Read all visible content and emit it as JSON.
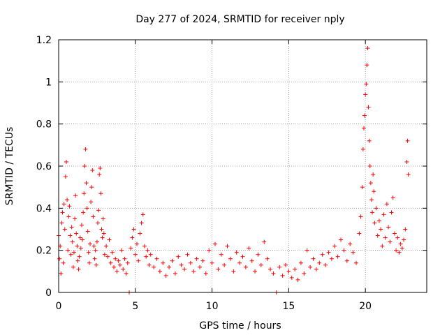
{
  "chart_data": {
    "type": "scatter",
    "title": "Day 277 of 2024, SRMTID for receiver nply",
    "xlabel": "GPS time / hours",
    "ylabel": "SRMTID / TECUs",
    "xlim": [
      0,
      24
    ],
    "ylim": [
      0,
      1.2
    ],
    "xticks": [
      0,
      5,
      10,
      15,
      20
    ],
    "xtick_labels": [
      "0",
      "5",
      "10",
      "15",
      "20"
    ],
    "yticks": [
      0,
      0.2,
      0.4,
      0.6,
      0.8,
      1.0,
      1.2
    ],
    "ytick_labels": [
      "0",
      "0.2",
      "0.4",
      "0.6",
      "0.8",
      "1",
      "1.2"
    ],
    "grid": true,
    "marker": "+",
    "color": "#ff0000",
    "series": [
      {
        "name": "SRMTID",
        "points": [
          [
            0.0,
            0.27
          ],
          [
            0.05,
            0.16
          ],
          [
            0.1,
            0.22
          ],
          [
            0.15,
            0.09
          ],
          [
            0.2,
            0.33
          ],
          [
            0.25,
            0.38
          ],
          [
            0.3,
            0.14
          ],
          [
            0.35,
            0.42
          ],
          [
            0.4,
            0.3
          ],
          [
            0.45,
            0.55
          ],
          [
            0.5,
            0.62
          ],
          [
            0.55,
            0.44
          ],
          [
            0.6,
            0.2
          ],
          [
            0.65,
            0.36
          ],
          [
            0.7,
            0.41
          ],
          [
            0.75,
            0.27
          ],
          [
            0.8,
            0.18
          ],
          [
            0.85,
            0.31
          ],
          [
            0.9,
            0.24
          ],
          [
            0.95,
            0.12
          ],
          [
            1.0,
            0.19
          ],
          [
            1.05,
            0.35
          ],
          [
            1.1,
            0.46
          ],
          [
            1.15,
            0.28
          ],
          [
            1.2,
            0.22
          ],
          [
            1.25,
            0.15
          ],
          [
            1.3,
            0.11
          ],
          [
            1.35,
            0.17
          ],
          [
            1.4,
            0.26
          ],
          [
            1.45,
            0.21
          ],
          [
            1.5,
            0.32
          ],
          [
            1.55,
            0.25
          ],
          [
            1.6,
            0.38
          ],
          [
            1.65,
            0.47
          ],
          [
            1.7,
            0.6
          ],
          [
            1.75,
            0.68
          ],
          [
            1.8,
            0.52
          ],
          [
            1.85,
            0.4
          ],
          [
            1.9,
            0.29
          ],
          [
            1.95,
            0.19
          ],
          [
            2.0,
            0.14
          ],
          [
            2.05,
            0.23
          ],
          [
            2.1,
            0.43
          ],
          [
            2.15,
            0.5
          ],
          [
            2.2,
            0.58
          ],
          [
            2.25,
            0.36
          ],
          [
            2.3,
            0.22
          ],
          [
            2.35,
            0.16
          ],
          [
            2.4,
            0.2
          ],
          [
            2.45,
            0.13
          ],
          [
            2.5,
            0.24
          ],
          [
            2.55,
            0.33
          ],
          [
            2.6,
            0.39
          ],
          [
            2.65,
            0.56
          ],
          [
            2.7,
            0.59
          ],
          [
            2.75,
            0.47
          ],
          [
            2.8,
            0.3
          ],
          [
            2.85,
            0.26
          ],
          [
            2.9,
            0.35
          ],
          [
            2.95,
            0.28
          ],
          [
            3.0,
            0.18
          ],
          [
            3.1,
            0.22
          ],
          [
            3.2,
            0.17
          ],
          [
            3.3,
            0.25
          ],
          [
            3.4,
            0.14
          ],
          [
            3.5,
            0.19
          ],
          [
            3.6,
            0.12
          ],
          [
            3.7,
            0.16
          ],
          [
            3.8,
            0.1
          ],
          [
            3.9,
            0.15
          ],
          [
            4.0,
            0.13
          ],
          [
            4.1,
            0.2
          ],
          [
            4.2,
            0.11
          ],
          [
            4.3,
            0.16
          ],
          [
            4.4,
            0.09
          ],
          [
            4.5,
            0.14
          ],
          [
            4.6,
            0.0
          ],
          [
            4.7,
            0.21
          ],
          [
            4.8,
            0.26
          ],
          [
            4.9,
            0.3
          ],
          [
            5.0,
            0.18
          ],
          [
            5.1,
            0.23
          ],
          [
            5.2,
            0.15
          ],
          [
            5.3,
            0.28
          ],
          [
            5.4,
            0.33
          ],
          [
            5.5,
            0.37
          ],
          [
            5.6,
            0.22
          ],
          [
            5.7,
            0.17
          ],
          [
            5.8,
            0.2
          ],
          [
            5.9,
            0.13
          ],
          [
            6.0,
            0.18
          ],
          [
            6.2,
            0.12
          ],
          [
            6.4,
            0.16
          ],
          [
            6.6,
            0.1
          ],
          [
            6.8,
            0.14
          ],
          [
            7.0,
            0.08
          ],
          [
            7.2,
            0.12
          ],
          [
            7.4,
            0.15
          ],
          [
            7.6,
            0.09
          ],
          [
            7.8,
            0.17
          ],
          [
            8.0,
            0.13
          ],
          [
            8.2,
            0.11
          ],
          [
            8.4,
            0.18
          ],
          [
            8.6,
            0.14
          ],
          [
            8.8,
            0.1
          ],
          [
            9.0,
            0.16
          ],
          [
            9.2,
            0.12
          ],
          [
            9.4,
            0.15
          ],
          [
            9.6,
            0.09
          ],
          [
            9.8,
            0.2
          ],
          [
            10.0,
            0.14
          ],
          [
            10.2,
            0.23
          ],
          [
            10.4,
            0.11
          ],
          [
            10.6,
            0.18
          ],
          [
            10.8,
            0.13
          ],
          [
            11.0,
            0.22
          ],
          [
            11.2,
            0.16
          ],
          [
            11.4,
            0.1
          ],
          [
            11.6,
            0.19
          ],
          [
            11.8,
            0.14
          ],
          [
            12.0,
            0.17
          ],
          [
            12.2,
            0.12
          ],
          [
            12.4,
            0.21
          ],
          [
            12.6,
            0.15
          ],
          [
            12.8,
            0.1
          ],
          [
            13.0,
            0.18
          ],
          [
            13.2,
            0.13
          ],
          [
            13.4,
            0.24
          ],
          [
            13.6,
            0.16
          ],
          [
            13.8,
            0.11
          ],
          [
            14.0,
            0.09
          ],
          [
            14.2,
            0.0
          ],
          [
            14.4,
            0.12
          ],
          [
            14.6,
            0.08
          ],
          [
            14.8,
            0.13
          ],
          [
            15.0,
            0.1
          ],
          [
            15.2,
            0.07
          ],
          [
            15.4,
            0.11
          ],
          [
            15.6,
            0.06
          ],
          [
            15.8,
            0.14
          ],
          [
            16.0,
            0.09
          ],
          [
            16.2,
            0.2
          ],
          [
            16.4,
            0.12
          ],
          [
            16.6,
            0.16
          ],
          [
            16.8,
            0.11
          ],
          [
            17.0,
            0.14
          ],
          [
            17.2,
            0.18
          ],
          [
            17.4,
            0.13
          ],
          [
            17.6,
            0.19
          ],
          [
            17.8,
            0.16
          ],
          [
            18.0,
            0.22
          ],
          [
            18.2,
            0.17
          ],
          [
            18.4,
            0.25
          ],
          [
            18.6,
            0.2
          ],
          [
            18.8,
            0.15
          ],
          [
            19.0,
            0.23
          ],
          [
            19.2,
            0.19
          ],
          [
            19.4,
            0.14
          ],
          [
            19.6,
            0.28
          ],
          [
            19.7,
            0.36
          ],
          [
            19.8,
            0.5
          ],
          [
            19.85,
            0.68
          ],
          [
            19.9,
            0.78
          ],
          [
            19.95,
            0.84
          ],
          [
            20.0,
            0.94
          ],
          [
            20.05,
            0.99
          ],
          [
            20.1,
            1.08
          ],
          [
            20.15,
            1.16
          ],
          [
            20.2,
            0.88
          ],
          [
            20.25,
            0.72
          ],
          [
            20.3,
            0.6
          ],
          [
            20.35,
            0.52
          ],
          [
            20.4,
            0.44
          ],
          [
            20.45,
            0.38
          ],
          [
            20.5,
            0.56
          ],
          [
            20.55,
            0.48
          ],
          [
            20.6,
            0.33
          ],
          [
            20.7,
            0.4
          ],
          [
            20.8,
            0.27
          ],
          [
            20.9,
            0.34
          ],
          [
            21.0,
            0.3
          ],
          [
            21.1,
            0.22
          ],
          [
            21.2,
            0.37
          ],
          [
            21.3,
            0.26
          ],
          [
            21.4,
            0.42
          ],
          [
            21.5,
            0.31
          ],
          [
            21.6,
            0.24
          ],
          [
            21.7,
            0.38
          ],
          [
            21.8,
            0.45
          ],
          [
            21.9,
            0.28
          ],
          [
            22.0,
            0.2
          ],
          [
            22.1,
            0.26
          ],
          [
            22.2,
            0.19
          ],
          [
            22.3,
            0.23
          ],
          [
            22.4,
            0.21
          ],
          [
            22.5,
            0.25
          ],
          [
            22.6,
            0.3
          ],
          [
            22.7,
            0.62
          ],
          [
            22.75,
            0.72
          ],
          [
            22.8,
            0.56
          ]
        ]
      }
    ]
  }
}
